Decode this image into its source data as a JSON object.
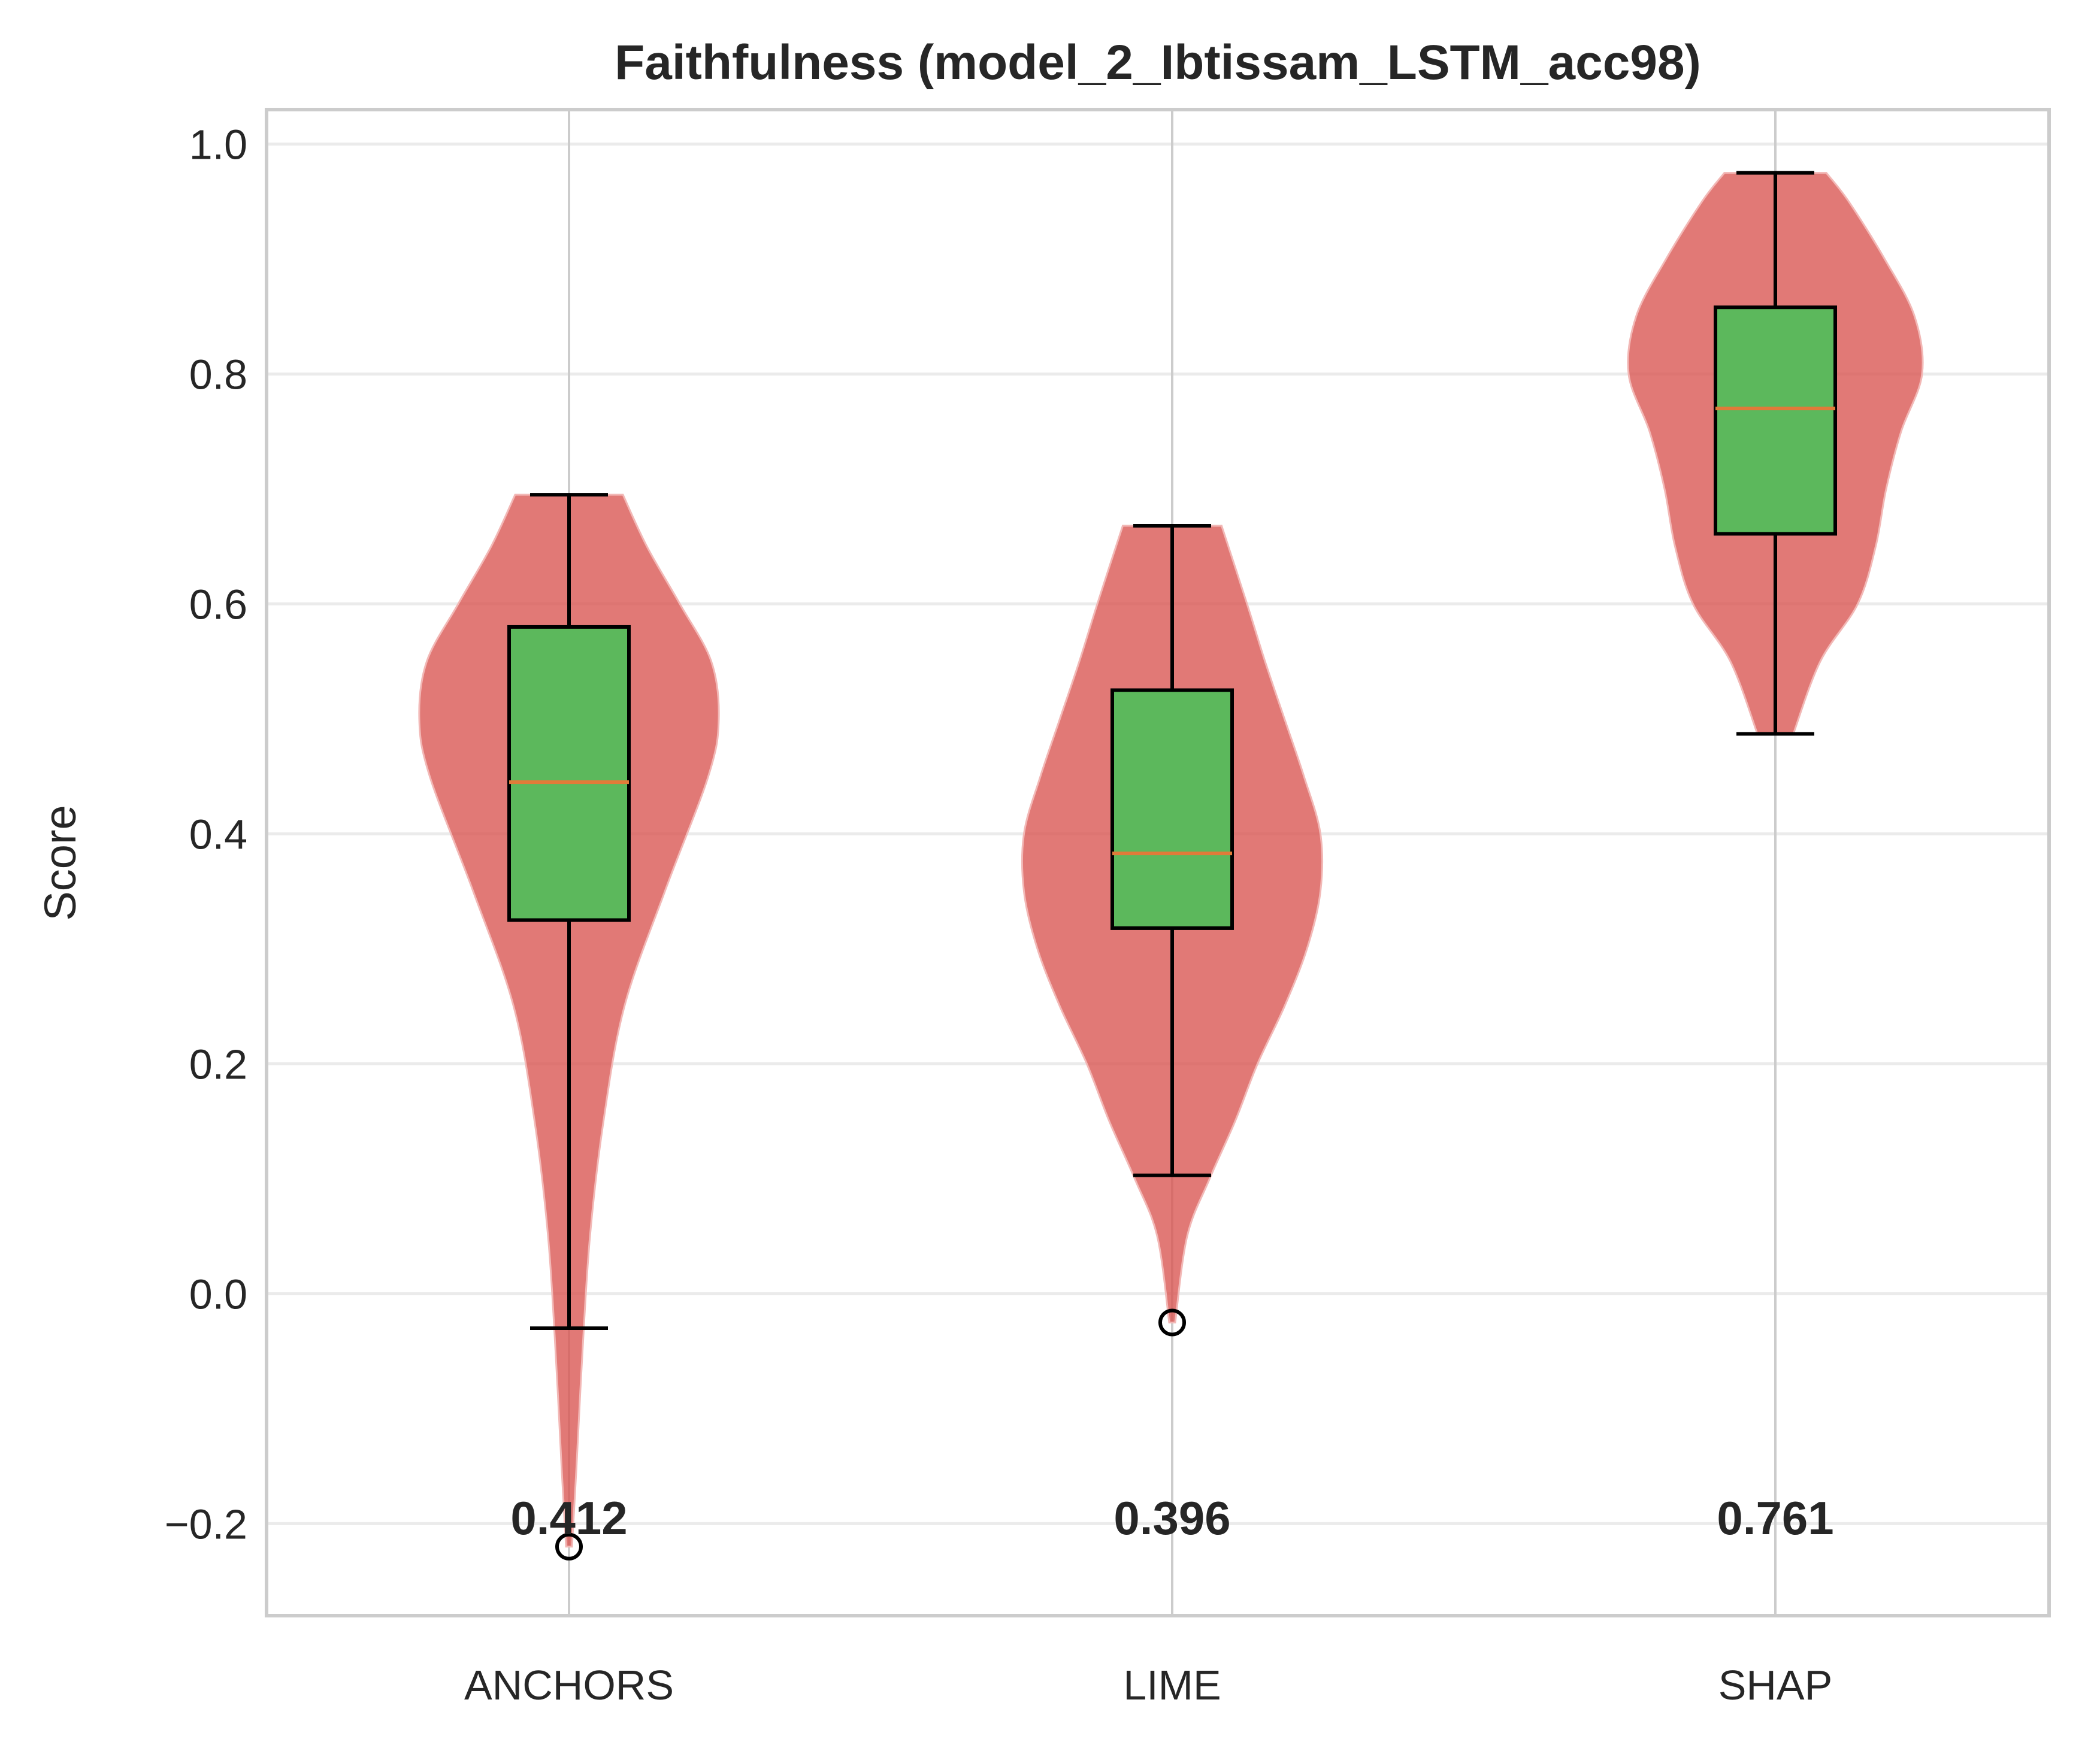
{
  "chart_data": {
    "type": "violin",
    "title": "Faithfulness (model_2_Ibtissam_LSTM_acc98)",
    "ylabel": "Score",
    "xlabel": "",
    "ylim": [
      -0.28,
      1.03
    ],
    "yticks": [
      -0.2,
      0.0,
      0.2,
      0.4,
      0.6,
      0.8,
      1.0
    ],
    "ytick_labels": [
      "−0.2",
      "0.0",
      "0.2",
      "0.4",
      "0.6",
      "0.8",
      "1.0"
    ],
    "grid": true,
    "colors": {
      "violin": "#d9534f",
      "box": "#5cb85c",
      "median": "#e07b39",
      "axes": "#cccccc",
      "grid": "#ebebeb"
    },
    "categories": [
      "ANCHORS",
      "LIME",
      "SHAP"
    ],
    "series": [
      {
        "category": "ANCHORS",
        "min": -0.22,
        "max": 0.695,
        "q1": 0.325,
        "median": 0.445,
        "q3": 0.58,
        "whisker_low": -0.03,
        "whisker_high": 0.695,
        "outliers": [
          -0.22
        ],
        "mean": 0.412,
        "mean_label": "0.412",
        "density": [
          [
            -0.22,
            0.02
          ],
          [
            -0.15,
            0.05
          ],
          [
            -0.05,
            0.09
          ],
          [
            0.05,
            0.14
          ],
          [
            0.15,
            0.23
          ],
          [
            0.25,
            0.37
          ],
          [
            0.35,
            0.64
          ],
          [
            0.45,
            0.93
          ],
          [
            0.5,
            1.0
          ],
          [
            0.55,
            0.95
          ],
          [
            0.6,
            0.74
          ],
          [
            0.65,
            0.52
          ],
          [
            0.695,
            0.36
          ]
        ]
      },
      {
        "category": "LIME",
        "min": -0.025,
        "max": 0.668,
        "q1": 0.318,
        "median": 0.383,
        "q3": 0.525,
        "whisker_low": 0.103,
        "whisker_high": 0.668,
        "outliers": [
          -0.025
        ],
        "mean": 0.396,
        "mean_label": "0.396",
        "density": [
          [
            -0.025,
            0.02
          ],
          [
            0.05,
            0.1
          ],
          [
            0.1,
            0.25
          ],
          [
            0.15,
            0.42
          ],
          [
            0.2,
            0.57
          ],
          [
            0.25,
            0.75
          ],
          [
            0.3,
            0.9
          ],
          [
            0.35,
            0.99
          ],
          [
            0.4,
            0.99
          ],
          [
            0.45,
            0.88
          ],
          [
            0.5,
            0.75
          ],
          [
            0.55,
            0.62
          ],
          [
            0.6,
            0.5
          ],
          [
            0.668,
            0.33
          ]
        ]
      },
      {
        "category": "SHAP",
        "min": 0.487,
        "max": 0.975,
        "q1": 0.661,
        "median": 0.77,
        "q3": 0.858,
        "whisker_low": 0.487,
        "whisker_high": 0.975,
        "outliers": [],
        "mean": 0.761,
        "mean_label": "0.761",
        "density": [
          [
            0.487,
            0.12
          ],
          [
            0.55,
            0.3
          ],
          [
            0.6,
            0.55
          ],
          [
            0.65,
            0.67
          ],
          [
            0.7,
            0.74
          ],
          [
            0.75,
            0.84
          ],
          [
            0.8,
            0.98
          ],
          [
            0.85,
            0.93
          ],
          [
            0.9,
            0.73
          ],
          [
            0.95,
            0.49
          ],
          [
            0.975,
            0.34
          ]
        ]
      }
    ]
  }
}
